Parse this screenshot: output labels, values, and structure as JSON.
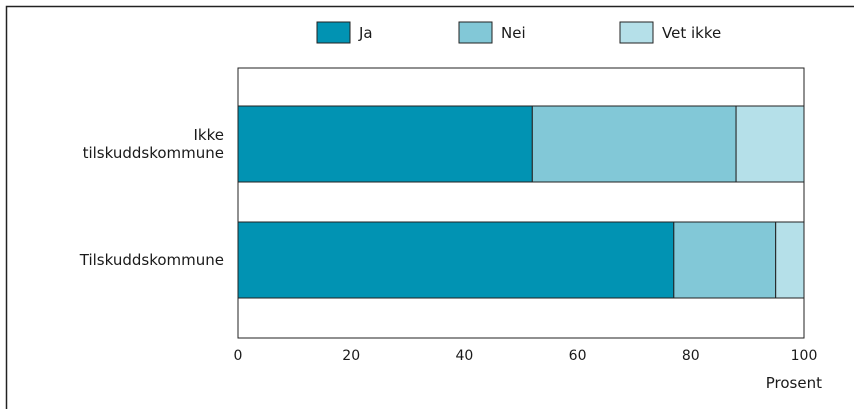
{
  "chart_data": {
    "type": "bar",
    "orientation": "horizontal",
    "stacked": true,
    "categories": [
      "Ikke tilskuddskommune",
      "Tilskuddskommune"
    ],
    "category_lines": [
      [
        "Ikke",
        "tilskuddskommune"
      ],
      [
        "Tilskuddskommune"
      ]
    ],
    "series": [
      {
        "name": "Ja",
        "values": [
          52,
          77
        ],
        "color": "#0193b3"
      },
      {
        "name": "Nei",
        "values": [
          36,
          18
        ],
        "color": "#82c8d7"
      },
      {
        "name": "Vet ikke",
        "values": [
          12,
          5
        ],
        "color": "#b5e0e9"
      }
    ],
    "xlabel": "Prosent",
    "xlim": [
      0,
      100
    ],
    "xticks": [
      "0",
      "20",
      "40",
      "60",
      "80",
      "100"
    ],
    "legend_position": "top",
    "grid": false
  }
}
